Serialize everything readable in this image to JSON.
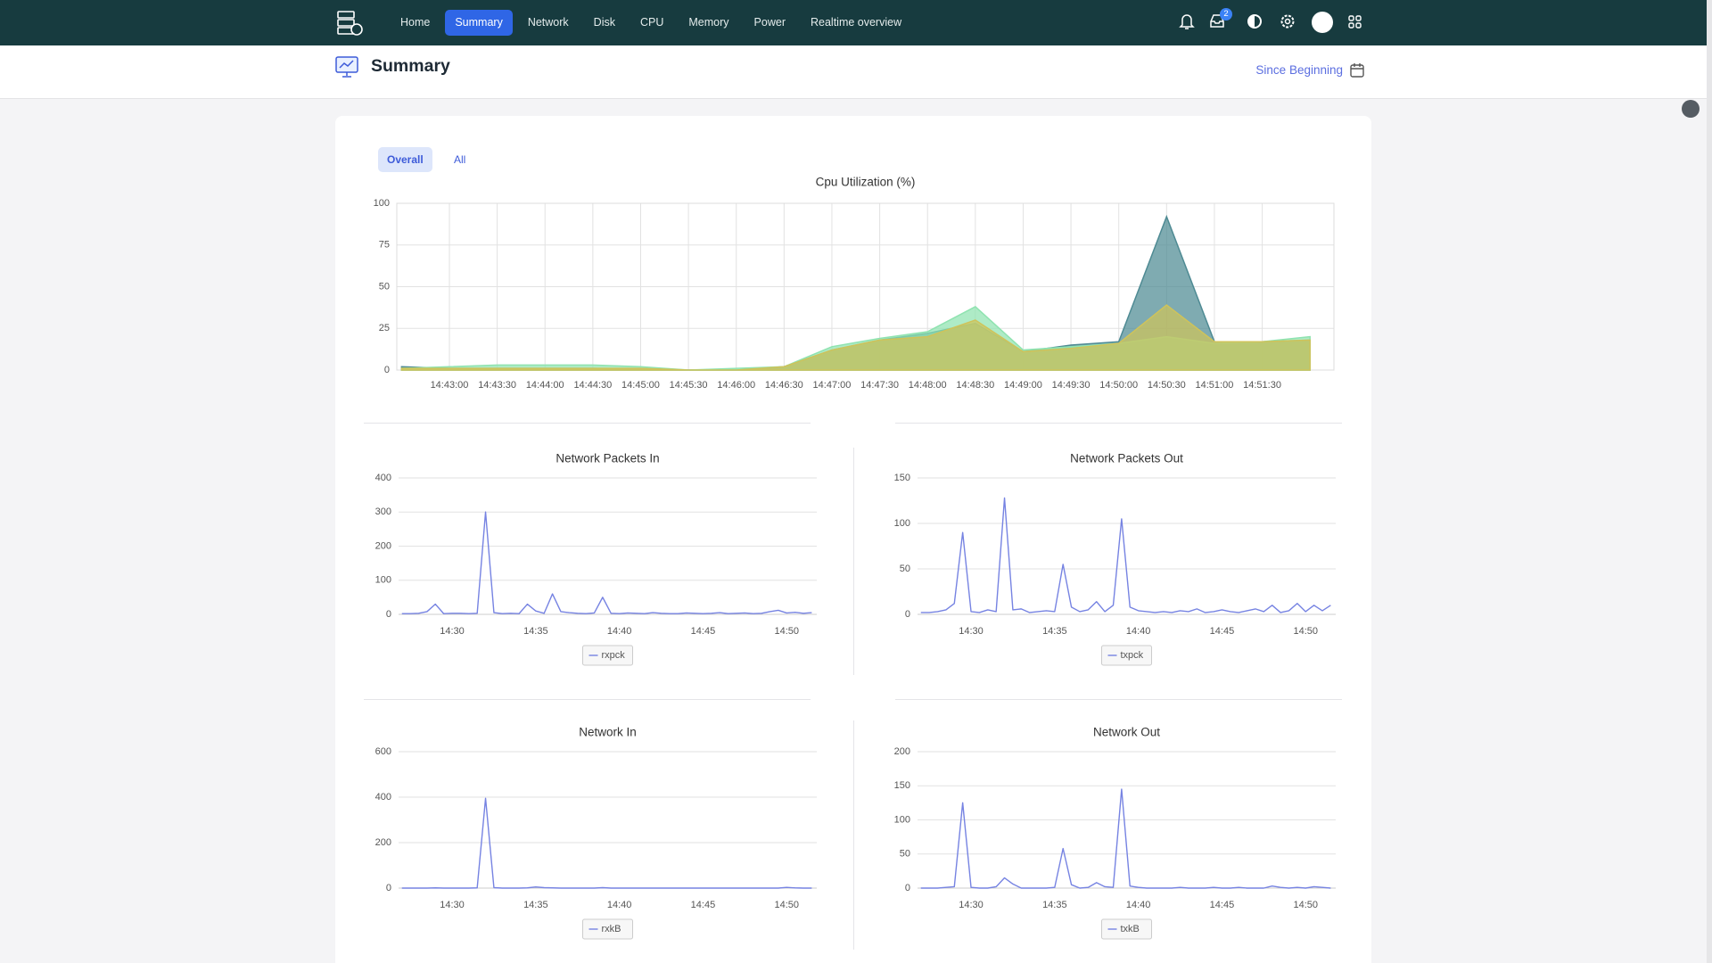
{
  "nav": {
    "items": [
      "Home",
      "Summary",
      "Network",
      "Disk",
      "CPU",
      "Memory",
      "Power",
      "Realtime overview"
    ],
    "inbox_count": 2
  },
  "header": {
    "title": "Summary",
    "range": "Since Beginning"
  },
  "tabs": [
    "Overall",
    "All"
  ],
  "chart_data": [
    {
      "type": "area",
      "title": "Cpu Utilization (%)",
      "categories": [
        null,
        "14:43:00",
        "14:43:30",
        "14:44:00",
        "14:44:30",
        "14:45:00",
        "14:45:30",
        "14:46:00",
        "14:46:30",
        "14:47:00",
        "14:47:30",
        "14:48:00",
        "14:48:30",
        "14:49:00",
        "14:49:30",
        "14:50:00",
        "14:50:30",
        "14:51:00",
        "14:51:30",
        null
      ],
      "series": [
        {
          "color": "#4e8a93",
          "values": [
            2,
            1,
            1,
            1,
            1,
            0.5,
            0,
            0,
            2,
            12,
            18,
            22,
            28,
            11,
            15,
            17,
            92,
            17,
            17,
            18
          ]
        },
        {
          "color": "#8fe3b0",
          "values": [
            1,
            2,
            3,
            3,
            3,
            2,
            0,
            1,
            2,
            14,
            19,
            23,
            38,
            12,
            14,
            16,
            20,
            16,
            17,
            20
          ]
        },
        {
          "color": "#cfc35a",
          "values": [
            1,
            1,
            1,
            1,
            1,
            1,
            0,
            0,
            2,
            12,
            18,
            20,
            30,
            11,
            13,
            16,
            39,
            17,
            17,
            18
          ]
        }
      ],
      "ylim": [
        0,
        100
      ],
      "yticks": [
        0,
        25,
        50,
        75,
        100
      ],
      "grid": true
    },
    {
      "type": "line",
      "title": "Network Packets In",
      "categories": [
        null,
        null,
        null,
        null,
        null,
        null,
        "14:30",
        null,
        null,
        null,
        null,
        null,
        null,
        null,
        null,
        null,
        "14:35",
        null,
        null,
        null,
        null,
        null,
        null,
        null,
        null,
        null,
        "14:40",
        null,
        null,
        null,
        null,
        null,
        null,
        null,
        null,
        null,
        "14:45",
        null,
        null,
        null,
        null,
        null,
        null,
        null,
        null,
        null,
        "14:50",
        null,
        null,
        null
      ],
      "series": [
        {
          "name": "rxpck",
          "color": "#7683e2",
          "values": [
            2,
            2,
            3,
            8,
            30,
            2,
            3,
            3,
            2,
            3,
            300,
            5,
            2,
            3,
            2,
            30,
            10,
            3,
            60,
            8,
            5,
            3,
            2,
            4,
            50,
            3,
            2,
            4,
            3,
            2,
            5,
            3,
            2,
            2,
            4,
            3,
            2,
            3,
            5,
            2,
            3,
            4,
            2,
            3,
            8,
            12,
            4,
            6,
            3,
            5
          ]
        }
      ],
      "ylim": [
        0,
        400
      ],
      "yticks": [
        0,
        100,
        200,
        300,
        400
      ],
      "grid": true,
      "legend": "bottom"
    },
    {
      "type": "line",
      "title": "Network Packets Out",
      "categories": [
        null,
        null,
        null,
        null,
        null,
        null,
        "14:30",
        null,
        null,
        null,
        null,
        null,
        null,
        null,
        null,
        null,
        "14:35",
        null,
        null,
        null,
        null,
        null,
        null,
        null,
        null,
        null,
        "14:40",
        null,
        null,
        null,
        null,
        null,
        null,
        null,
        null,
        null,
        "14:45",
        null,
        null,
        null,
        null,
        null,
        null,
        null,
        null,
        null,
        "14:50",
        null,
        null,
        null
      ],
      "series": [
        {
          "name": "txpck",
          "color": "#7683e2",
          "values": [
            2,
            2,
            3,
            5,
            12,
            90,
            3,
            2,
            5,
            3,
            128,
            5,
            6,
            2,
            3,
            4,
            3,
            55,
            8,
            3,
            5,
            14,
            3,
            10,
            105,
            8,
            4,
            3,
            2,
            3,
            2,
            4,
            3,
            6,
            2,
            3,
            5,
            3,
            2,
            4,
            6,
            3,
            10,
            2,
            4,
            12,
            3,
            10,
            4,
            10
          ]
        }
      ],
      "ylim": [
        0,
        150
      ],
      "yticks": [
        0,
        50,
        100,
        150
      ],
      "grid": true,
      "legend": "bottom"
    },
    {
      "type": "line",
      "title": "Network In",
      "categories": [
        null,
        null,
        null,
        null,
        null,
        null,
        "14:30",
        null,
        null,
        null,
        null,
        null,
        null,
        null,
        null,
        null,
        "14:35",
        null,
        null,
        null,
        null,
        null,
        null,
        null,
        null,
        null,
        "14:40",
        null,
        null,
        null,
        null,
        null,
        null,
        null,
        null,
        null,
        "14:45",
        null,
        null,
        null,
        null,
        null,
        null,
        null,
        null,
        null,
        "14:50",
        null,
        null,
        null
      ],
      "series": [
        {
          "name": "rxkB",
          "color": "#7683e2",
          "values": [
            0,
            0,
            0,
            0,
            1,
            0,
            0,
            0,
            0,
            1,
            395,
            2,
            0,
            0,
            0,
            1,
            5,
            2,
            1,
            0,
            0,
            0,
            0,
            0,
            2,
            0,
            0,
            0,
            0,
            0,
            0,
            0,
            0,
            0,
            0,
            0,
            0,
            0,
            0,
            0,
            0,
            0,
            0,
            0,
            0,
            0,
            3,
            1,
            0,
            0
          ]
        }
      ],
      "ylim": [
        0,
        600
      ],
      "yticks": [
        0,
        200,
        400,
        600
      ],
      "grid": true,
      "legend": "bottom"
    },
    {
      "type": "line",
      "title": "Network Out",
      "categories": [
        null,
        null,
        null,
        null,
        null,
        null,
        "14:30",
        null,
        null,
        null,
        null,
        null,
        null,
        null,
        null,
        null,
        "14:35",
        null,
        null,
        null,
        null,
        null,
        null,
        null,
        null,
        null,
        "14:40",
        null,
        null,
        null,
        null,
        null,
        null,
        null,
        null,
        null,
        "14:45",
        null,
        null,
        null,
        null,
        null,
        null,
        null,
        null,
        null,
        "14:50",
        null,
        null,
        null
      ],
      "series": [
        {
          "name": "txkB",
          "color": "#7683e2",
          "values": [
            0,
            0,
            0,
            1,
            2,
            125,
            1,
            0,
            0,
            2,
            15,
            6,
            0,
            0,
            0,
            0,
            1,
            58,
            5,
            0,
            1,
            8,
            2,
            1,
            145,
            3,
            1,
            0,
            0,
            0,
            0,
            1,
            0,
            0,
            0,
            1,
            0,
            0,
            1,
            0,
            0,
            0,
            3,
            1,
            0,
            1,
            0,
            2,
            1,
            0
          ]
        }
      ],
      "ylim": [
        0,
        200
      ],
      "yticks": [
        0,
        50,
        100,
        150,
        200
      ],
      "grid": true,
      "legend": "bottom"
    }
  ]
}
